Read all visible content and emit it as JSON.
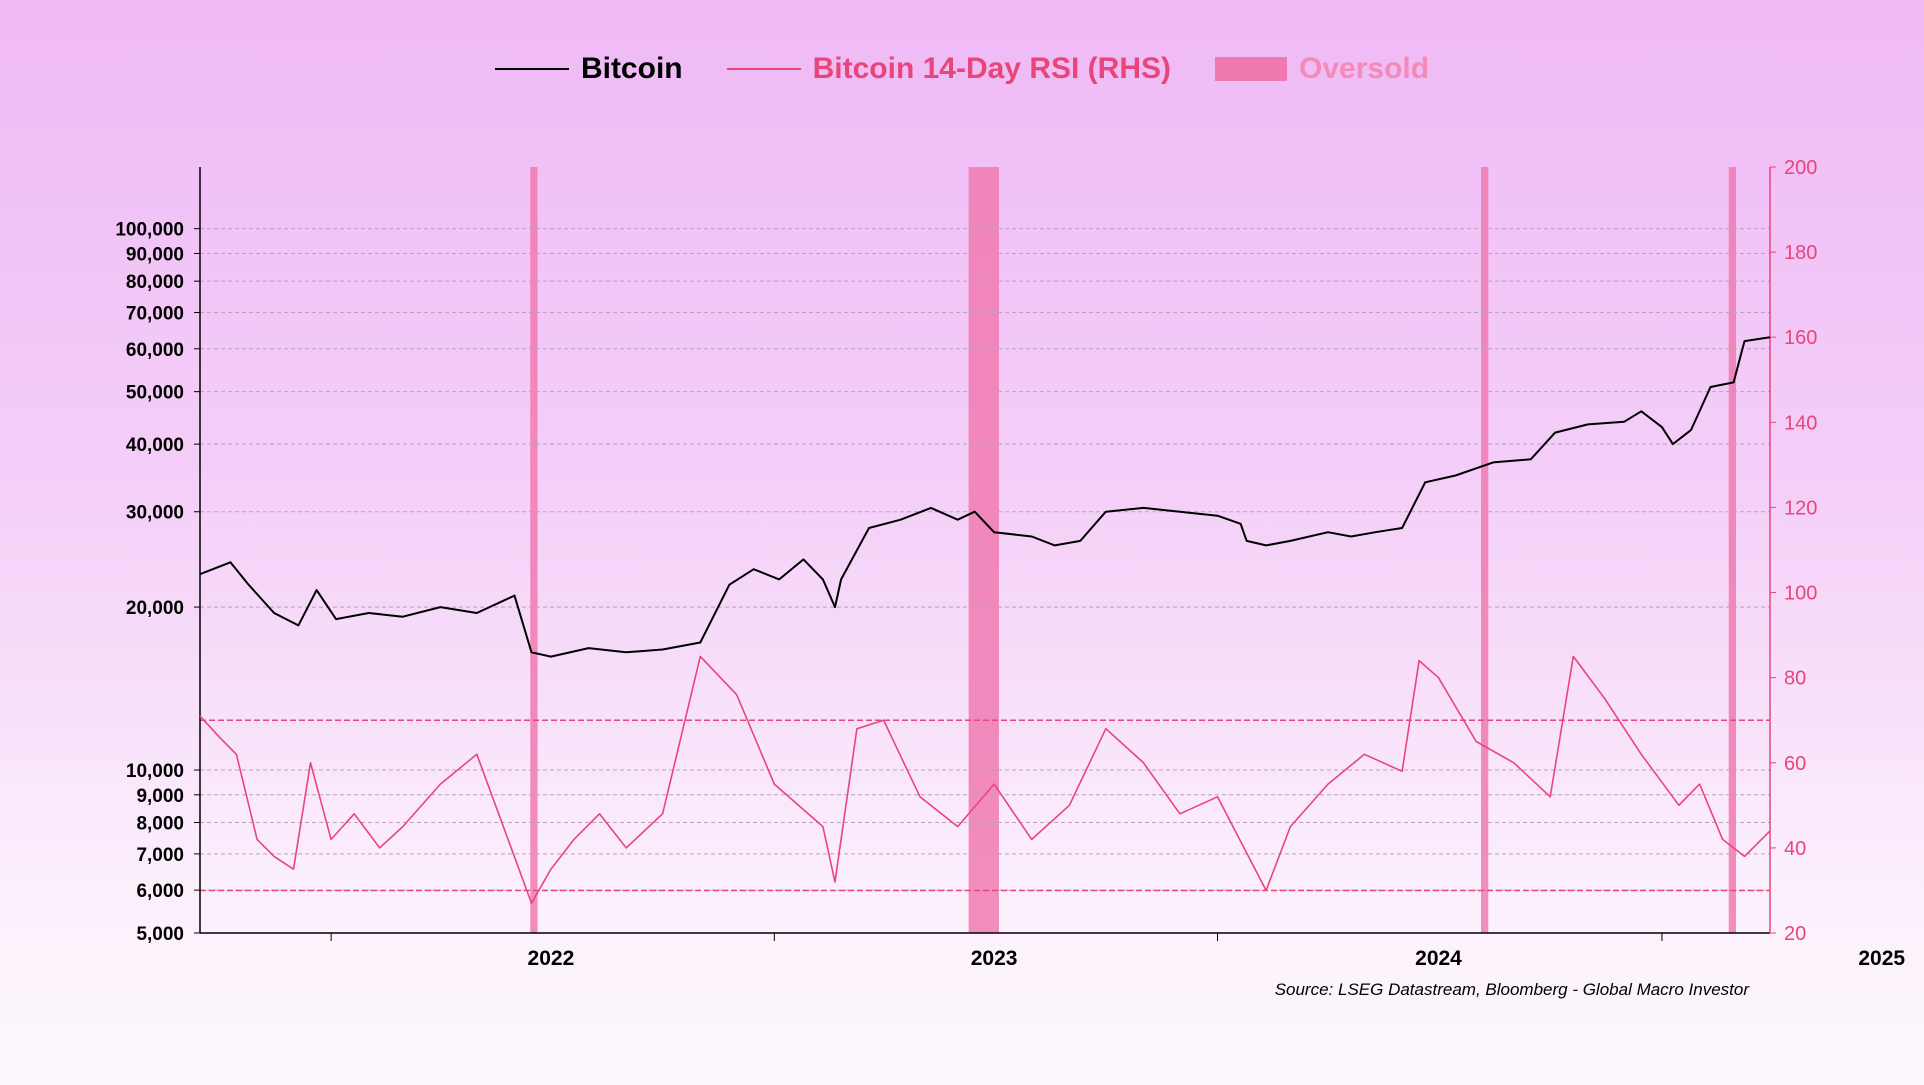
{
  "legend": {
    "bitcoin_label": "Bitcoin",
    "rsi_label": "Bitcoin 14-Day RSI (RHS)",
    "oversold_label": "Oversold"
  },
  "source": "Source: LSEG Datastream, Bloomberg - Global Macro Investor",
  "colors": {
    "bitcoin": "#000000",
    "rsi": "#e8467a",
    "oversold": "#f07ab0",
    "oversold_legend_text": "#f48ab8",
    "grid": "#b8a2c0"
  },
  "chart_data": {
    "type": "line",
    "x_ticks": [
      "2022",
      "2023",
      "2024",
      "2025"
    ],
    "left_axis": {
      "scale": "log",
      "range": [
        5000,
        130000
      ],
      "ticks": [
        5000,
        6000,
        7000,
        8000,
        9000,
        10000,
        20000,
        30000,
        40000,
        50000,
        60000,
        70000,
        80000,
        90000,
        100000
      ],
      "tick_labels": [
        "5,000",
        "6,000",
        "7,000",
        "8,000",
        "9,000",
        "10,000",
        "20,000",
        "30,000",
        "40,000",
        "50,000",
        "60,000",
        "70,000",
        "80,000",
        "90,000",
        "100,000"
      ]
    },
    "right_axis": {
      "scale": "linear",
      "range": [
        20,
        200
      ],
      "ticks": [
        20,
        40,
        60,
        80,
        100,
        120,
        140,
        160,
        180,
        200
      ]
    },
    "x_range": [
      "2021-09-15",
      "2025-03-31"
    ],
    "rsi_levels": [
      70,
      30
    ],
    "oversold_periods": [
      [
        "2022-06-14",
        "2022-06-20"
      ],
      [
        "2023-06-10",
        "2023-07-05"
      ],
      [
        "2024-08-05",
        "2024-08-11"
      ],
      [
        "2025-02-25",
        "2025-03-03"
      ]
    ],
    "series": [
      {
        "name": "Bitcoin",
        "axis": "left",
        "points": [
          [
            "2021-09-15",
            23000
          ],
          [
            "2021-10-10",
            24200
          ],
          [
            "2021-10-25",
            22000
          ],
          [
            "2021-11-15",
            19500
          ],
          [
            "2021-12-05",
            18500
          ],
          [
            "2021-12-20",
            21500
          ],
          [
            "2022-01-05",
            19000
          ],
          [
            "2022-02-01",
            19500
          ],
          [
            "2022-03-01",
            19200
          ],
          [
            "2022-04-01",
            20000
          ],
          [
            "2022-05-01",
            19500
          ],
          [
            "2022-06-01",
            21000
          ],
          [
            "2022-06-15",
            16500
          ],
          [
            "2022-07-01",
            16200
          ],
          [
            "2022-08-01",
            16800
          ],
          [
            "2022-09-01",
            16500
          ],
          [
            "2022-10-01",
            16700
          ],
          [
            "2022-11-01",
            17200
          ],
          [
            "2022-11-25",
            22000
          ],
          [
            "2022-12-15",
            23500
          ],
          [
            "2023-01-05",
            22500
          ],
          [
            "2023-01-25",
            24500
          ],
          [
            "2023-02-10",
            22500
          ],
          [
            "2023-02-20",
            20000
          ],
          [
            "2023-02-25",
            22500
          ],
          [
            "2023-03-20",
            28000
          ],
          [
            "2023-04-15",
            29000
          ],
          [
            "2023-05-10",
            30500
          ],
          [
            "2023-06-01",
            29000
          ],
          [
            "2023-06-15",
            30000
          ],
          [
            "2023-07-01",
            27500
          ],
          [
            "2023-08-01",
            27000
          ],
          [
            "2023-08-20",
            26000
          ],
          [
            "2023-09-10",
            26500
          ],
          [
            "2023-10-01",
            30000
          ],
          [
            "2023-11-01",
            30500
          ],
          [
            "2023-12-01",
            30000
          ],
          [
            "2024-01-01",
            29500
          ],
          [
            "2024-01-20",
            28500
          ],
          [
            "2024-01-25",
            26500
          ],
          [
            "2024-02-10",
            26000
          ],
          [
            "2024-03-01",
            26500
          ],
          [
            "2024-04-01",
            27500
          ],
          [
            "2024-04-20",
            27000
          ],
          [
            "2024-05-10",
            27500
          ],
          [
            "2024-06-01",
            28000
          ],
          [
            "2024-06-20",
            34000
          ],
          [
            "2024-07-15",
            35000
          ],
          [
            "2024-08-15",
            37000
          ],
          [
            "2024-09-15",
            37500
          ],
          [
            "2024-10-05",
            42000
          ],
          [
            "2024-11-01",
            43500
          ],
          [
            "2024-12-01",
            44000
          ],
          [
            "2024-12-15",
            46000
          ],
          [
            "2025-01-01",
            43000
          ],
          [
            "2025-01-10",
            40000
          ],
          [
            "2025-01-25",
            42500
          ],
          [
            "2025-02-10",
            51000
          ],
          [
            "2025-03-01",
            52000
          ],
          [
            "2025-03-10",
            62000
          ],
          [
            "2025-03-31",
            63000
          ]
        ]
      },
      {
        "name": "Bitcoin 14-Day RSI (RHS)",
        "axis": "right",
        "points": [
          [
            "2021-09-15",
            71
          ],
          [
            "2021-10-01",
            66
          ],
          [
            "2021-10-15",
            62
          ],
          [
            "2021-11-01",
            42
          ],
          [
            "2021-11-15",
            38
          ],
          [
            "2021-12-01",
            35
          ],
          [
            "2021-12-15",
            60
          ],
          [
            "2022-01-01",
            42
          ],
          [
            "2022-01-20",
            48
          ],
          [
            "2022-02-10",
            40
          ],
          [
            "2022-03-01",
            45
          ],
          [
            "2022-04-01",
            55
          ],
          [
            "2022-05-01",
            62
          ],
          [
            "2022-06-15",
            27
          ],
          [
            "2022-07-01",
            35
          ],
          [
            "2022-07-20",
            42
          ],
          [
            "2022-08-10",
            48
          ],
          [
            "2022-09-01",
            40
          ],
          [
            "2022-10-01",
            48
          ],
          [
            "2022-11-01",
            85
          ],
          [
            "2022-12-01",
            76
          ],
          [
            "2023-01-01",
            55
          ],
          [
            "2023-02-10",
            45
          ],
          [
            "2023-02-20",
            32
          ],
          [
            "2023-03-10",
            68
          ],
          [
            "2023-04-01",
            70
          ],
          [
            "2023-05-01",
            52
          ],
          [
            "2023-06-01",
            45
          ],
          [
            "2023-07-01",
            55
          ],
          [
            "2023-08-01",
            42
          ],
          [
            "2023-09-01",
            50
          ],
          [
            "2023-10-01",
            68
          ],
          [
            "2023-11-01",
            60
          ],
          [
            "2023-12-01",
            48
          ],
          [
            "2024-01-01",
            52
          ],
          [
            "2024-02-10",
            30
          ],
          [
            "2024-03-01",
            45
          ],
          [
            "2024-04-01",
            55
          ],
          [
            "2024-05-01",
            62
          ],
          [
            "2024-06-01",
            58
          ],
          [
            "2024-06-15",
            84
          ],
          [
            "2024-07-01",
            80
          ],
          [
            "2024-08-01",
            65
          ],
          [
            "2024-09-01",
            60
          ],
          [
            "2024-10-01",
            52
          ],
          [
            "2024-10-20",
            85
          ],
          [
            "2024-11-15",
            75
          ],
          [
            "2024-12-15",
            62
          ],
          [
            "2025-01-15",
            50
          ],
          [
            "2025-02-01",
            55
          ],
          [
            "2025-02-20",
            42
          ],
          [
            "2025-03-10",
            38
          ],
          [
            "2025-03-31",
            44
          ]
        ]
      }
    ]
  }
}
